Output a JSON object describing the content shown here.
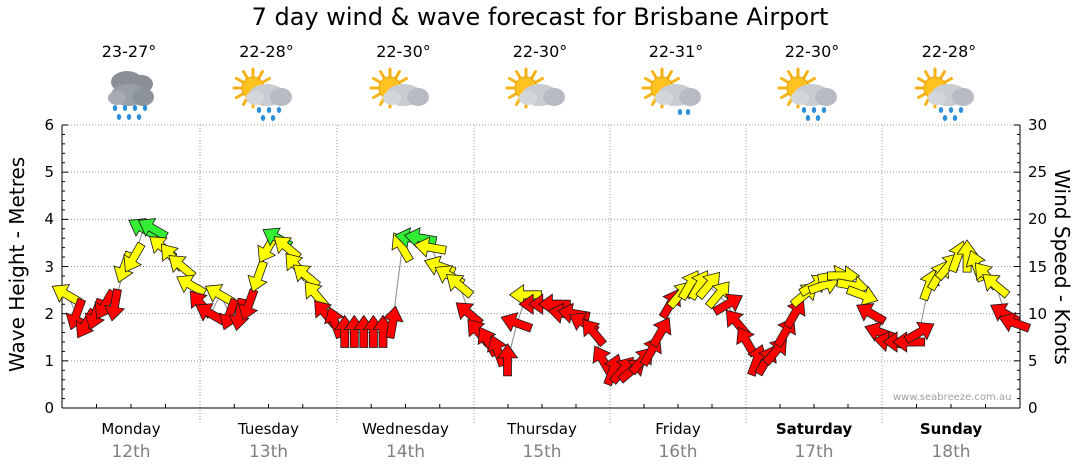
{
  "chart_data": {
    "type": "line",
    "title": "7 day wind & wave forecast for Brisbane Airport",
    "ylabel": "Wave Height - Metres",
    "y2label": "Wind Speed - Knots",
    "ylim": [
      0,
      6
    ],
    "y2lim": [
      0,
      30
    ],
    "yticks": [
      "0",
      "1",
      "2",
      "3",
      "4",
      "5",
      "6"
    ],
    "y2ticks": [
      "0",
      "5",
      "10",
      "15",
      "20",
      "25",
      "30"
    ],
    "grid": true,
    "days": [
      {
        "name": "Monday",
        "date": "12th",
        "temp": "23-27°",
        "icon": "rain-cloud-icon",
        "bold": false
      },
      {
        "name": "Tuesday",
        "date": "13th",
        "temp": "22-28°",
        "icon": "sun-rain-cloud-icon",
        "bold": false
      },
      {
        "name": "Wednesday",
        "date": "14th",
        "temp": "22-30°",
        "icon": "sun-cloud-icon",
        "bold": false
      },
      {
        "name": "Thursday",
        "date": "15th",
        "temp": "22-30°",
        "icon": "sun-cloud-icon",
        "bold": false
      },
      {
        "name": "Friday",
        "date": "16th",
        "temp": "22-31°",
        "icon": "sun-light-rain-icon",
        "bold": false
      },
      {
        "name": "Saturday",
        "date": "17th",
        "temp": "22-30°",
        "icon": "sun-rain-cloud-icon",
        "bold": true
      },
      {
        "name": "Sunday",
        "date": "18th",
        "temp": "22-28°",
        "icon": "sun-rain-cloud-icon",
        "bold": true
      }
    ],
    "wind_knots": [
      12,
      10,
      9,
      10,
      11,
      11,
      15,
      16,
      19,
      19,
      17,
      16,
      15,
      13,
      11,
      10,
      12,
      10,
      10,
      11,
      14,
      17,
      18,
      17,
      15,
      14,
      12,
      10,
      9,
      8,
      8,
      8,
      8,
      8,
      9,
      17,
      18,
      18,
      17,
      15,
      14,
      13,
      10,
      8,
      7,
      6,
      5,
      9,
      12,
      11,
      11,
      11,
      10,
      10,
      9,
      8,
      5,
      4,
      4,
      4,
      5,
      6,
      8,
      11,
      12,
      13,
      13,
      13,
      12,
      11,
      9,
      7,
      5,
      5,
      6,
      8,
      10,
      12,
      13,
      13,
      14,
      14,
      13,
      12,
      10,
      8,
      7,
      7,
      7,
      8,
      13,
      14,
      15,
      16,
      16,
      15,
      14,
      13,
      10,
      9
    ],
    "wind_direction_deg": [
      300,
      200,
      210,
      200,
      210,
      190,
      200,
      210,
      300,
      300,
      310,
      320,
      310,
      300,
      320,
      300,
      300,
      200,
      190,
      200,
      200,
      210,
      300,
      310,
      320,
      310,
      320,
      320,
      340,
      0,
      0,
      0,
      0,
      0,
      10,
      330,
      280,
      280,
      280,
      290,
      300,
      310,
      310,
      320,
      330,
      340,
      0,
      290,
      270,
      270,
      270,
      270,
      280,
      280,
      300,
      320,
      330,
      20,
      40,
      50,
      40,
      30,
      30,
      30,
      40,
      30,
      30,
      40,
      40,
      60,
      320,
      330,
      20,
      30,
      40,
      30,
      30,
      50,
      60,
      70,
      80,
      90,
      100,
      110,
      300,
      290,
      280,
      270,
      270,
      60,
      20,
      30,
      40,
      20,
      0,
      340,
      320,
      310,
      300,
      290
    ],
    "wave_height_m": [
      0,
      0,
      0,
      0,
      0,
      0,
      0,
      0,
      0,
      0,
      0,
      0,
      0,
      0,
      0,
      0,
      0,
      0,
      0,
      0,
      0,
      0,
      0,
      0,
      0,
      0,
      0,
      0,
      0,
      0,
      0,
      0,
      0,
      0,
      0,
      0,
      0,
      0,
      0,
      0,
      0,
      0,
      0,
      0,
      0,
      0,
      0,
      0,
      0,
      0,
      0,
      0,
      0,
      0,
      0,
      0,
      0,
      0,
      0,
      0,
      0,
      0,
      0,
      0,
      0,
      0,
      0,
      0,
      0,
      0,
      0,
      0,
      0,
      0,
      0,
      0,
      0,
      0,
      0,
      0,
      0,
      0,
      0,
      0,
      0,
      0,
      0,
      0,
      0,
      0,
      0,
      0,
      0,
      0,
      0,
      0,
      0,
      0,
      0,
      0
    ],
    "color_thresholds_knots": {
      "red_below": 12,
      "yellow_below": 18
    },
    "colors": {
      "low": "#ff0000",
      "mid": "#ffff00",
      "high": "#33ee33",
      "grid": "#999999"
    }
  },
  "watermark": "www.seabreeze.com.au"
}
